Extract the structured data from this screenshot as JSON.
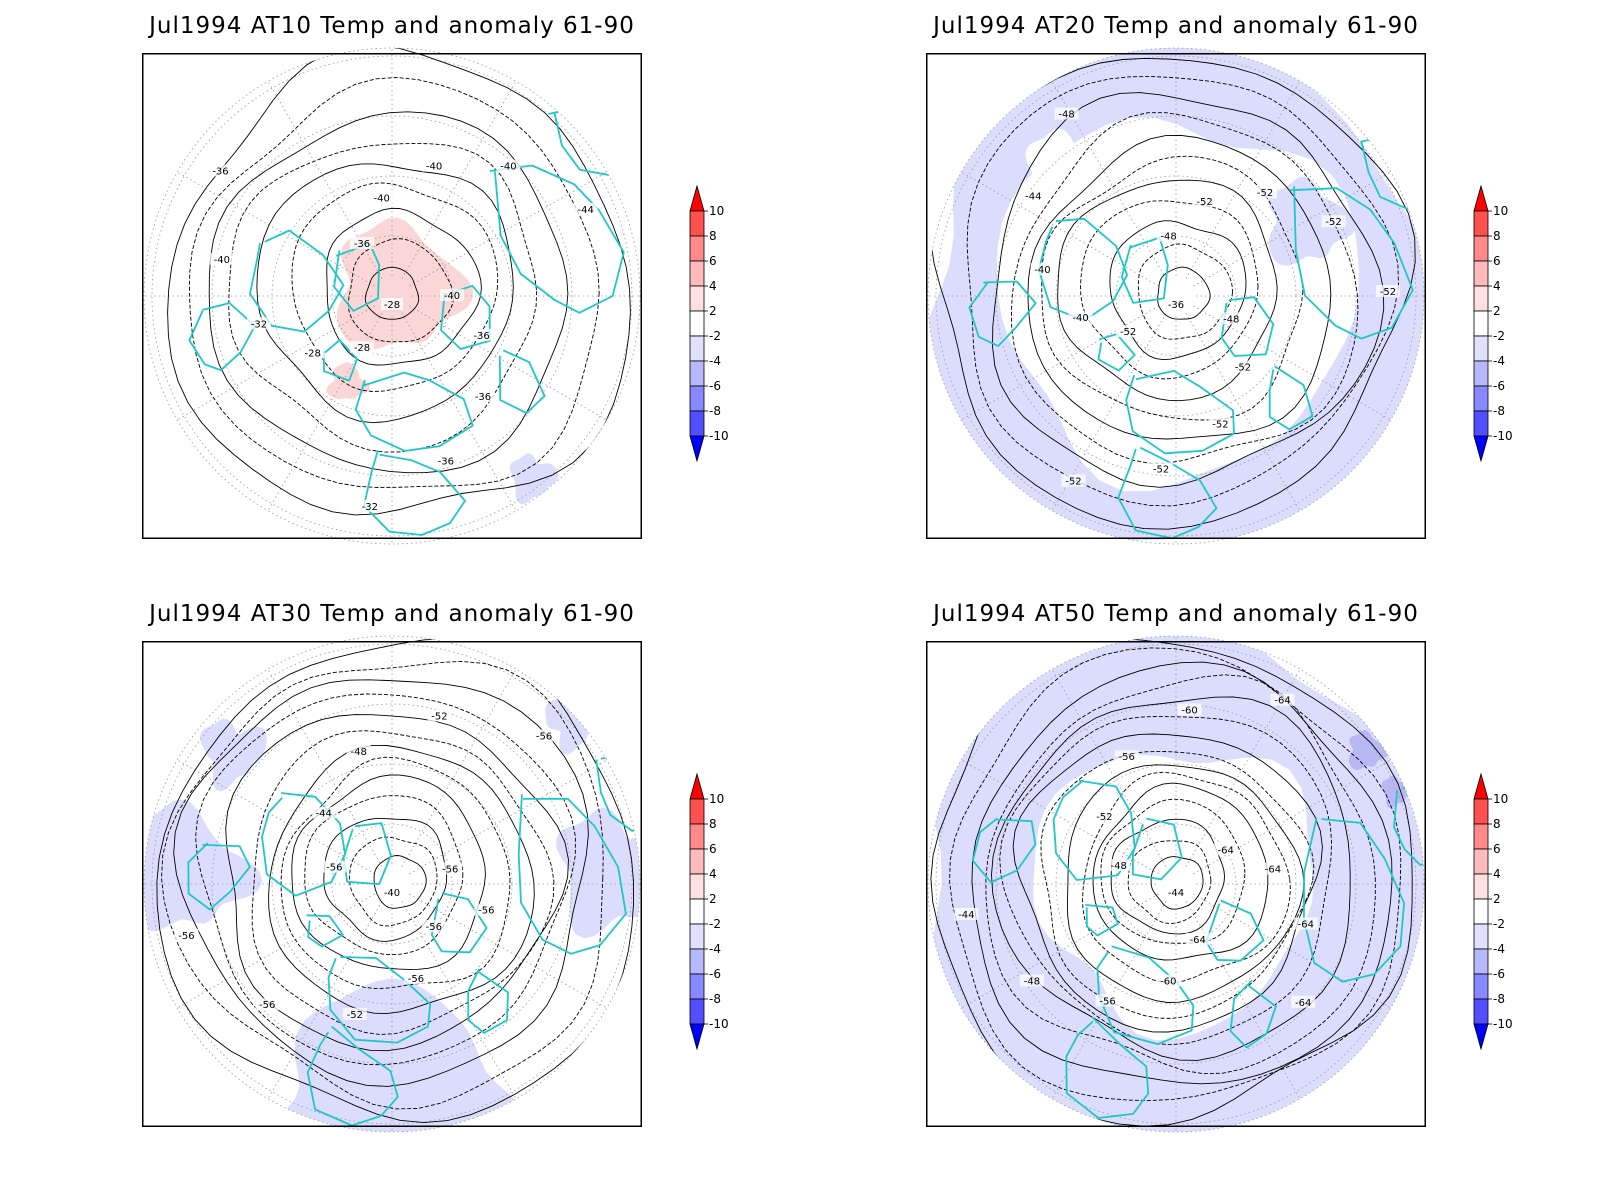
{
  "panels": [
    {
      "title": "Jul1994 AT10 Temp and anomaly 61-90",
      "center_value": "-28",
      "contour_labels": [
        "-40",
        "-36",
        "-36",
        "-36",
        "-32",
        "-28",
        "-28",
        "-32",
        "-40",
        "-36",
        "-36",
        "-40",
        "-40",
        "-40",
        "-44"
      ],
      "anomaly": "warm-pole"
    },
    {
      "title": "Jul1994 AT20 Temp and anomaly 61-90",
      "center_value": "-36",
      "contour_labels": [
        "-48",
        "-52",
        "-52",
        "-52",
        "-52",
        "-52",
        "-40",
        "-40",
        "-44",
        "-48",
        "-48",
        "-52",
        "-52",
        "-52",
        "-52"
      ],
      "anomaly": "cool-ring"
    },
    {
      "title": "Jul1994 AT30 Temp and anomaly 61-90",
      "center_value": "-40",
      "contour_labels": [
        "-56",
        "-56",
        "-52",
        "-56",
        "-56",
        "-56",
        "-44",
        "-48",
        "-52",
        "-56",
        "-56",
        "-56"
      ],
      "anomaly": "cool-patches"
    },
    {
      "title": "Jul1994 AT50 Temp and anomaly 61-90",
      "center_value": "-44",
      "contour_labels": [
        "-64",
        "-60",
        "-56",
        "-48",
        "-44",
        "-48",
        "-52",
        "-56",
        "-60",
        "-64",
        "-64",
        "-64",
        "-64",
        "-64"
      ],
      "anomaly": "cool-wide"
    }
  ],
  "colorbar": {
    "labels": [
      "10",
      "8",
      "6",
      "4",
      "2",
      "-2",
      "-4",
      "-6",
      "-8",
      "-10"
    ],
    "colors": [
      "#ff0000",
      "#ff5050",
      "#ff8888",
      "#ffbbbb",
      "#ffe0e0",
      "#ffffff",
      "#e0e0ff",
      "#b8b8ff",
      "#8888ff",
      "#5050ff",
      "#0000ff"
    ]
  },
  "map_colors": {
    "coast": "#1fc7c7",
    "contour": "#000000",
    "grid": "#999999",
    "warm_fill": "#fbd6d6",
    "cool_fill": "#dcdcfd",
    "cool_fill_strong": "#b8b8f5"
  }
}
